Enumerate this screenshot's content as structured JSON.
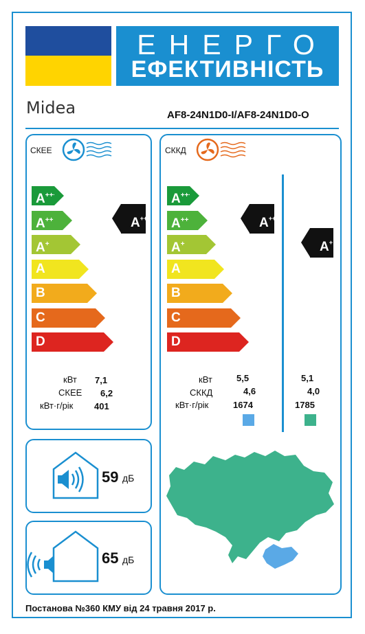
{
  "header": {
    "title_line1": "ЕНЕРГО",
    "title_line2": "ЕФЕКТИВНІСТЬ",
    "flag_colors": {
      "top": "#1f4e9e",
      "bottom": "#ffd400"
    },
    "accent": "#1a8fd0"
  },
  "brand": "Midea",
  "model": "AF8-24N1D0-I/AF8-24N1D0-O",
  "cooling": {
    "label": "СКЕЕ",
    "icon": "fan-cold-air-icon",
    "classes": [
      {
        "letter": "A",
        "plus": "+++",
        "color": "#1a9a3a"
      },
      {
        "letter": "A",
        "plus": "++",
        "color": "#4db23b"
      },
      {
        "letter": "A",
        "plus": "+",
        "color": "#a3c634"
      },
      {
        "letter": "A",
        "plus": "",
        "color": "#f1e51f"
      },
      {
        "letter": "B",
        "plus": "",
        "color": "#f2ab1c"
      },
      {
        "letter": "C",
        "plus": "",
        "color": "#e5691c"
      },
      {
        "letter": "D",
        "plus": "",
        "color": "#dd2520"
      }
    ],
    "rating": {
      "letter": "A",
      "plus": "++"
    },
    "specs": [
      {
        "label": "кВт",
        "value": "7,1"
      },
      {
        "label": "СКЕЕ",
        "value": "6,2"
      },
      {
        "label": "кВт·г/рік",
        "value": "401"
      }
    ]
  },
  "heating": {
    "label": "СККД",
    "icon": "fan-warm-air-icon",
    "classes": [
      {
        "letter": "A",
        "plus": "+++",
        "color": "#1a9a3a"
      },
      {
        "letter": "A",
        "plus": "++",
        "color": "#4db23b"
      },
      {
        "letter": "A",
        "plus": "+",
        "color": "#a3c634"
      },
      {
        "letter": "A",
        "plus": "",
        "color": "#f1e51f"
      },
      {
        "letter": "B",
        "plus": "",
        "color": "#f2ab1c"
      },
      {
        "letter": "C",
        "plus": "",
        "color": "#e5691c"
      },
      {
        "letter": "D",
        "plus": "",
        "color": "#dd2520"
      }
    ],
    "rating_average": {
      "letter": "A",
      "plus": "++"
    },
    "rating_warmer": {
      "letter": "A",
      "plus": "+"
    },
    "specs": [
      {
        "label": "кВт",
        "value_average": "5,5",
        "value_warmer": "5,1"
      },
      {
        "label": "СККД",
        "value_average": "4,6",
        "value_warmer": "4,0"
      },
      {
        "label": "кВт·г/рік",
        "value_average": "1674",
        "value_warmer": "1785"
      }
    ],
    "swatch_average": "#5aa9e6",
    "swatch_warmer": "#3db28c"
  },
  "noise": {
    "indoor": {
      "value": "59",
      "unit": "дБ",
      "icon": "indoor-speaker-house-icon"
    },
    "outdoor": {
      "value": "65",
      "unit": "дБ",
      "icon": "outdoor-speaker-house-icon"
    }
  },
  "map": {
    "icon": "ukraine-map-icon",
    "main_color": "#3db28c",
    "south_color": "#5aa9e6"
  },
  "footer": "Постанова №360 КМУ від 24 травня 2017 р."
}
